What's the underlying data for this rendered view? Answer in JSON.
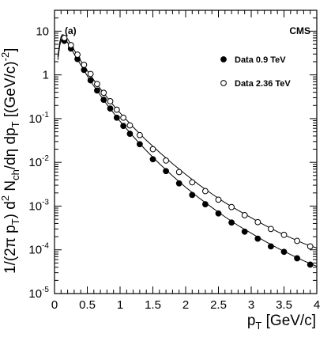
{
  "chart_data": {
    "type": "scatter",
    "panel_label": "(a)",
    "experiment_label": "CMS",
    "ylabel_parts": [
      "1/(2π p",
      "T",
      ") d",
      "2",
      " N",
      "ch",
      "/dη dp",
      "T",
      " [(GeV/c)",
      "-2",
      "]"
    ],
    "xlabel_parts": [
      "p",
      "T",
      " [GeV/c]"
    ],
    "xlim": [
      0,
      4
    ],
    "ylim": [
      1e-05,
      30
    ],
    "y_scale": "log",
    "x_ticks": [
      {
        "value": 0,
        "label": "0"
      },
      {
        "value": 0.5,
        "label": "0.5"
      },
      {
        "value": 1,
        "label": "1"
      },
      {
        "value": 1.5,
        "label": "1.5"
      },
      {
        "value": 2,
        "label": "2"
      },
      {
        "value": 2.5,
        "label": "2.5"
      },
      {
        "value": 3,
        "label": "3"
      },
      {
        "value": 3.5,
        "label": "3.5"
      },
      {
        "value": 4,
        "label": "4"
      }
    ],
    "y_ticks": [
      {
        "value": 10,
        "base": "10",
        "exp": ""
      },
      {
        "value": 1,
        "base": "1",
        "exp": ""
      },
      {
        "value": 0.1,
        "base": "10",
        "exp": "-1"
      },
      {
        "value": 0.01,
        "base": "10",
        "exp": "-2"
      },
      {
        "value": 0.001,
        "base": "10",
        "exp": "-3"
      },
      {
        "value": 0.0001,
        "base": "10",
        "exp": "-4"
      },
      {
        "value": 1e-05,
        "base": "10",
        "exp": "-5"
      }
    ],
    "legend_position": "top-right",
    "series": [
      {
        "name": "Data 0.9 TeV",
        "marker": "filled-circle",
        "x": [
          0.15,
          0.25,
          0.35,
          0.45,
          0.55,
          0.65,
          0.75,
          0.85,
          0.95,
          1.05,
          1.15,
          1.3,
          1.5,
          1.7,
          1.9,
          2.1,
          2.3,
          2.5,
          2.7,
          2.9,
          3.1,
          3.3,
          3.5,
          3.7,
          3.9
        ],
        "y": [
          6.0,
          4.0,
          2.3,
          1.3,
          0.75,
          0.44,
          0.27,
          0.17,
          0.105,
          0.068,
          0.045,
          0.026,
          0.0118,
          0.0063,
          0.0033,
          0.0018,
          0.0011,
          0.00068,
          0.00042,
          0.00026,
          0.00018,
          0.00012,
          9e-05,
          6.4e-05,
          4.6e-05
        ]
      },
      {
        "name": "Data 2.36 TeV",
        "marker": "open-circle",
        "x": [
          0.15,
          0.25,
          0.35,
          0.45,
          0.55,
          0.65,
          0.75,
          0.85,
          0.95,
          1.05,
          1.15,
          1.3,
          1.5,
          1.7,
          1.9,
          2.1,
          2.3,
          2.5,
          2.7,
          2.9,
          3.1,
          3.3,
          3.5,
          3.7,
          3.9
        ],
        "y": [
          7.0,
          4.8,
          2.9,
          1.7,
          1.05,
          0.62,
          0.39,
          0.25,
          0.16,
          0.105,
          0.07,
          0.042,
          0.02,
          0.011,
          0.006,
          0.0035,
          0.0022,
          0.0014,
          0.00095,
          0.00062,
          0.00043,
          0.0003,
          0.00022,
          0.00016,
          0.00012
        ]
      }
    ],
    "fit_curves": [
      {
        "series": "Data 0.9 TeV",
        "x": [
          0.05,
          0.08,
          0.1,
          0.12,
          0.15,
          0.2,
          0.25,
          0.3,
          0.4,
          0.5,
          0.6,
          0.7,
          0.8,
          0.9,
          1.0,
          1.2,
          1.4,
          1.6,
          1.8,
          2.0,
          2.2,
          2.4,
          2.6,
          2.8,
          3.0,
          3.2,
          3.4,
          3.6,
          3.8,
          4.0
        ],
        "y": [
          2.2,
          4.6,
          6.3,
          7.0,
          6.7,
          5.5,
          4.1,
          3.0,
          1.7,
          0.95,
          0.56,
          0.34,
          0.21,
          0.135,
          0.087,
          0.039,
          0.0185,
          0.0093,
          0.0049,
          0.0027,
          0.00155,
          0.00093,
          0.00057,
          0.00036,
          0.00024,
          0.00016,
          0.00011,
          7.8e-05,
          5.6e-05,
          4.2e-05
        ]
      },
      {
        "series": "Data 2.36 TeV",
        "x": [
          0.05,
          0.08,
          0.1,
          0.12,
          0.15,
          0.2,
          0.25,
          0.3,
          0.4,
          0.5,
          0.6,
          0.7,
          0.8,
          0.9,
          1.0,
          1.2,
          1.4,
          1.6,
          1.8,
          2.0,
          2.2,
          2.4,
          2.6,
          2.8,
          3.0,
          3.2,
          3.4,
          3.6,
          3.8,
          4.0
        ],
        "y": [
          2.6,
          5.5,
          7.5,
          8.4,
          8.0,
          6.6,
          5.0,
          3.7,
          2.1,
          1.25,
          0.76,
          0.48,
          0.31,
          0.2,
          0.135,
          0.064,
          0.032,
          0.017,
          0.0093,
          0.0053,
          0.0031,
          0.0019,
          0.0012,
          0.0008,
          0.00054,
          0.00037,
          0.00026,
          0.00019,
          0.00014,
          0.00011
        ]
      }
    ]
  }
}
